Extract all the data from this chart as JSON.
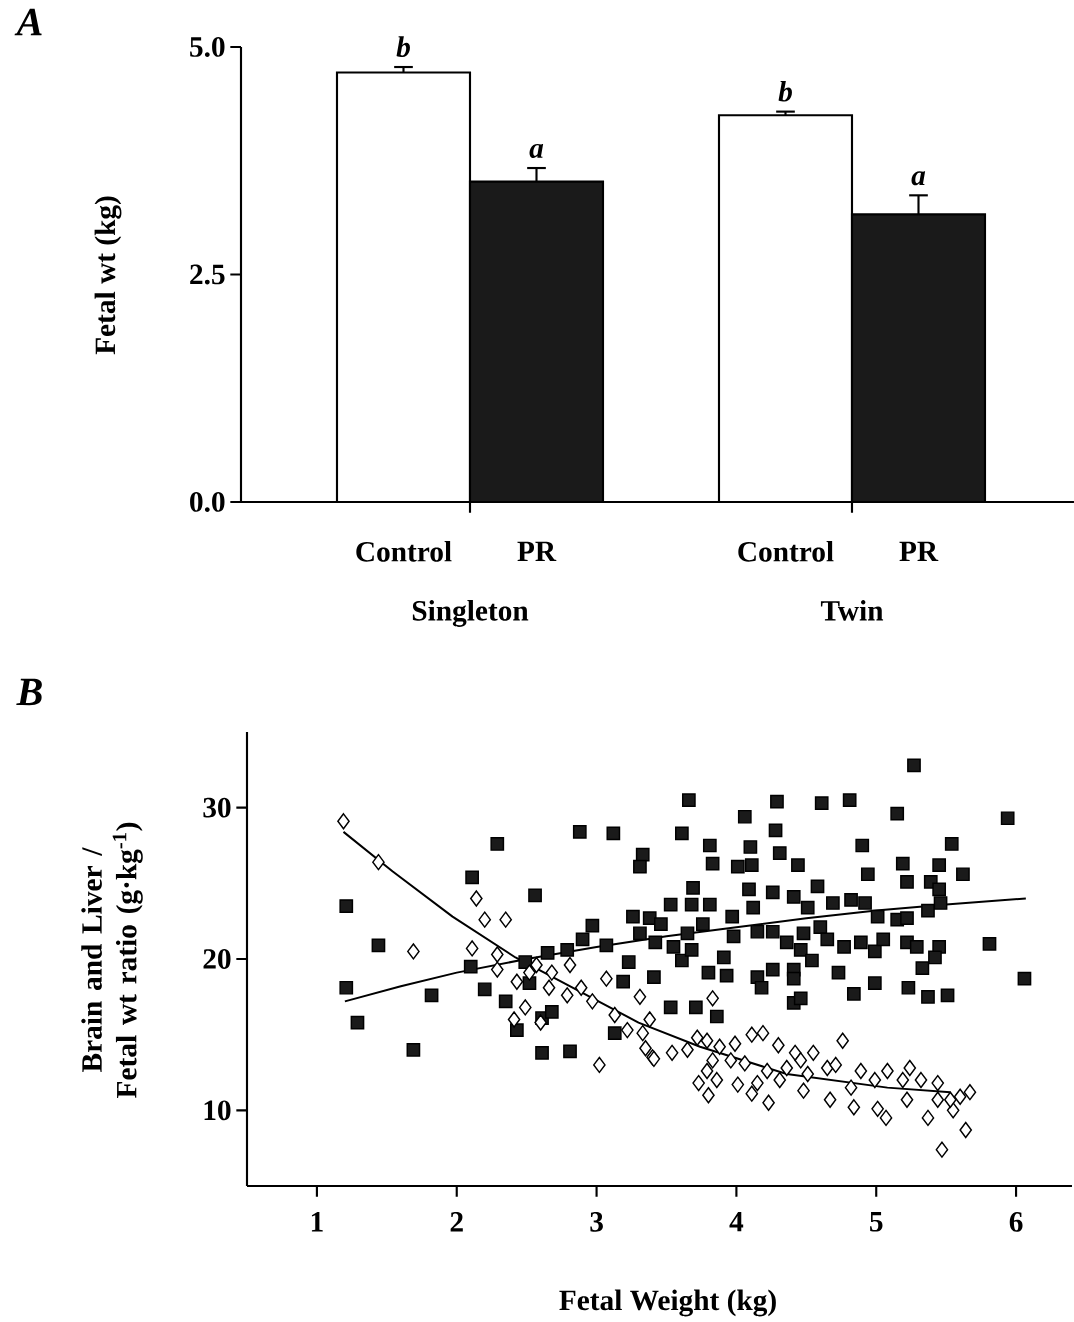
{
  "chart_data": [
    {
      "type": "bar",
      "title": "A",
      "ylabel": "Fetal wt (kg)",
      "categories": [
        "Singleton",
        "Twin"
      ],
      "series": [
        {
          "name": "Control",
          "color": "#ffffff",
          "values": [
            4.72,
            4.25
          ],
          "errors": [
            [
              4.72,
              4.78
            ],
            [
              4.25,
              4.29
            ]
          ]
        },
        {
          "name": "PR",
          "color": "#1a1a1a",
          "values": [
            3.52,
            3.16
          ],
          "errors": [
            [
              3.52,
              3.67
            ],
            [
              3.16,
              3.37
            ]
          ]
        }
      ],
      "ylim": [
        0,
        5
      ],
      "yticks": [
        {
          "value": 0,
          "label": "0.0"
        },
        {
          "value": 2.5,
          "label": "2.5"
        },
        {
          "value": 5,
          "label": "5.0"
        }
      ],
      "annotations": [
        "b",
        "a",
        "b",
        "a"
      ]
    },
    {
      "type": "scatter",
      "title": "B",
      "xlabel": "Fetal Weight (kg)",
      "ylabel": "Brain and Liver / Fetal wt ratio (g·kg$^{-1}$)",
      "series": [
        {
          "color": "#1a1a1a",
          "marker": "square",
          "x": [
            1.21,
            1.21,
            1.29,
            1.44,
            1.69,
            1.82,
            2.29,
            2.11,
            2.56,
            2.1,
            2.2,
            2.35,
            2.52,
            2.61,
            2.43,
            2.61,
            2.81,
            2.49,
            2.65,
            2.79,
            2.97,
            2.9,
            3.07,
            2.88,
            3.12,
            3.33,
            3.31,
            3.26,
            3.23,
            3.19,
            3.13,
            3.41,
            3.42,
            3.38,
            2.68,
            5.27,
            3.66,
            4.29,
            4.61,
            4.81,
            5.15,
            5.94,
            4.06,
            3.61,
            4.28,
            3.81,
            4.1,
            4.9,
            5.54,
            3.83,
            4.01,
            4.11,
            4.31,
            5.19,
            5.45,
            5.62,
            4.94,
            4.44,
            3.69,
            4.09,
            4.58,
            5.22,
            5.39,
            5.45,
            3.53,
            3.68,
            3.81,
            3.97,
            4.12,
            4.26,
            4.41,
            4.51,
            4.69,
            4.82,
            4.92,
            5.01,
            5.15,
            5.22,
            5.46,
            5.37,
            3.46,
            3.65,
            3.76,
            3.31,
            3.55,
            3.61,
            3.68,
            3.98,
            4.15,
            4.26,
            4.36,
            4.48,
            4.6,
            4.65,
            4.77,
            4.89,
            4.99,
            5.05,
            5.22,
            5.29,
            5.45,
            5.42,
            5.81,
            3.91,
            4.46,
            4.54,
            4.41,
            4.26,
            4.15,
            3.8,
            3.93,
            4.18,
            4.41,
            4.73,
            4.84,
            4.99,
            5.23,
            5.33,
            5.37,
            5.51,
            6.06,
            4.41,
            4.46,
            3.86,
            3.71,
            3.53
          ],
          "values": [
            23.5,
            18.1,
            15.8,
            20.9,
            14.0,
            17.6,
            27.6,
            25.4,
            24.2,
            19.5,
            18.0,
            17.2,
            18.4,
            16.1,
            15.3,
            13.8,
            13.9,
            19.8,
            20.4,
            20.6,
            22.2,
            21.3,
            20.9,
            28.4,
            28.3,
            26.9,
            26.1,
            22.8,
            19.8,
            18.5,
            15.1,
            18.8,
            21.1,
            22.7,
            16.5,
            32.8,
            30.5,
            30.4,
            30.3,
            30.5,
            29.6,
            29.3,
            29.4,
            28.3,
            28.5,
            27.5,
            27.4,
            27.5,
            27.6,
            26.3,
            26.1,
            26.2,
            27.0,
            26.3,
            26.2,
            25.6,
            25.6,
            26.2,
            24.7,
            24.6,
            24.8,
            25.1,
            25.1,
            24.6,
            23.6,
            23.6,
            23.6,
            22.8,
            23.4,
            24.4,
            24.1,
            23.4,
            23.7,
            23.9,
            23.7,
            22.8,
            22.6,
            22.7,
            23.7,
            23.2,
            22.3,
            21.7,
            22.3,
            21.7,
            20.8,
            19.9,
            20.6,
            21.5,
            21.8,
            21.8,
            21.1,
            21.7,
            22.1,
            21.3,
            20.8,
            21.1,
            20.5,
            21.3,
            21.1,
            20.8,
            20.8,
            20.1,
            21.0,
            20.1,
            20.6,
            19.9,
            19.3,
            19.3,
            18.8,
            19.1,
            18.9,
            18.1,
            18.7,
            19.1,
            17.7,
            18.4,
            18.1,
            19.4,
            17.5,
            17.6,
            18.7,
            17.1,
            17.4,
            16.2,
            16.8,
            16.8
          ]
        },
        {
          "color": "#ffffff",
          "marker": "diamond",
          "x": [
            1.19,
            1.44,
            1.69,
            2.14,
            2.2,
            2.35,
            2.11,
            2.29,
            2.29,
            2.43,
            2.52,
            2.57,
            2.68,
            2.81,
            2.66,
            2.79,
            2.89,
            2.97,
            2.49,
            2.41,
            2.6,
            3.07,
            3.02,
            3.13,
            3.31,
            3.22,
            3.33,
            3.35,
            3.4,
            3.38,
            3.41,
            3.54,
            3.72,
            3.83,
            3.79,
            3.65,
            3.88,
            3.99,
            4.11,
            4.19,
            4.3,
            4.42,
            4.55,
            4.76,
            3.73,
            3.8,
            3.86,
            3.79,
            3.83,
            4.01,
            4.11,
            4.15,
            4.23,
            3.96,
            4.06,
            4.22,
            4.31,
            4.36,
            4.48,
            4.51,
            4.46,
            4.65,
            4.71,
            4.67,
            4.84,
            4.82,
            4.89,
            4.99,
            5.01,
            5.07,
            5.08,
            5.19,
            5.24,
            5.22,
            5.32,
            5.37,
            5.44,
            5.44,
            5.55,
            5.64,
            5.47,
            5.67,
            5.6,
            5.53
          ],
          "values": [
            29.1,
            26.4,
            20.5,
            24.0,
            22.6,
            22.6,
            20.7,
            20.3,
            19.3,
            18.5,
            19.1,
            19.6,
            19.1,
            19.6,
            18.1,
            17.6,
            18.1,
            17.2,
            16.8,
            16.0,
            15.8,
            18.7,
            13.0,
            16.3,
            17.5,
            15.3,
            15.1,
            14.1,
            13.5,
            16.0,
            13.4,
            13.8,
            14.8,
            17.4,
            14.6,
            14.0,
            14.2,
            14.4,
            15.0,
            15.1,
            14.3,
            13.8,
            13.8,
            14.6,
            11.8,
            11.0,
            12.0,
            12.6,
            13.3,
            11.7,
            11.1,
            11.8,
            10.5,
            13.3,
            13.1,
            12.6,
            12.0,
            12.8,
            11.3,
            12.4,
            13.3,
            12.8,
            13.0,
            10.7,
            10.2,
            11.5,
            12.6,
            12.0,
            10.1,
            9.5,
            12.6,
            12.0,
            12.8,
            10.7,
            12.0,
            9.5,
            11.8,
            10.7,
            10.0,
            8.7,
            7.4,
            11.2,
            10.9,
            10.7
          ]
        },
        {
          "type": "line",
          "color": "#000000",
          "x": [
            1.2,
            1.6,
            2.0,
            2.5,
            3.0,
            3.5,
            4.0,
            4.5,
            5.0,
            5.5,
            6.07
          ],
          "values": [
            17.2,
            18.2,
            19.1,
            20.0,
            20.8,
            21.5,
            22.1,
            22.7,
            23.2,
            23.6,
            24.0
          ]
        },
        {
          "type": "line",
          "color": "#000000",
          "x": [
            1.19,
            1.54,
            1.97,
            2.42,
            3.3,
            3.74,
            4.36,
            5.08,
            5.53
          ],
          "values": [
            28.4,
            25.8,
            22.8,
            20.1,
            15.8,
            14.2,
            12.4,
            11.5,
            11.2
          ]
        }
      ],
      "xlim": [
        0.5,
        6.4
      ],
      "ylim": [
        5,
        35
      ],
      "xticks": [
        1,
        2,
        3,
        4,
        5,
        6
      ],
      "yticks": [
        10,
        20,
        30
      ]
    }
  ]
}
